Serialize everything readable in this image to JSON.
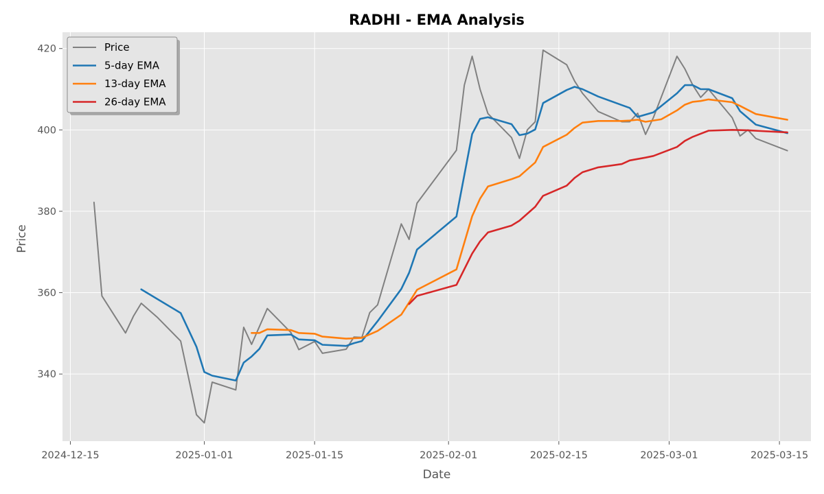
{
  "chart_data": {
    "type": "line",
    "title": "RADHI - EMA Analysis",
    "xlabel": "Date",
    "ylabel": "Price",
    "xlim": [
      "2024-12-14",
      "2025-03-19"
    ],
    "ylim": [
      323.5,
      424
    ],
    "x_ticks": [
      "2024-12-15",
      "2025-01-01",
      "2025-01-15",
      "2025-02-01",
      "2025-02-15",
      "2025-03-01",
      "2025-03-15"
    ],
    "y_ticks": [
      340,
      360,
      380,
      400,
      420
    ],
    "grid": true,
    "legend_position": "top-left",
    "colors": {
      "plot_bg": "#e5e5e5",
      "grid": "#ffffff"
    },
    "series": [
      {
        "name": "Price",
        "color": "#808080",
        "points": [
          [
            "2024-12-18",
            382.2
          ],
          [
            "2024-12-19",
            359.2
          ],
          [
            "2024-12-22",
            350.1
          ],
          [
            "2024-12-23",
            354.2
          ],
          [
            "2024-12-24",
            357.4
          ],
          [
            "2024-12-26",
            354.0
          ],
          [
            "2024-12-29",
            348.1
          ],
          [
            "2024-12-30",
            339.1
          ],
          [
            "2024-12-31",
            330.0
          ],
          [
            "2025-01-01",
            328.0
          ],
          [
            "2025-01-02",
            338.0
          ],
          [
            "2025-01-05",
            336.1
          ],
          [
            "2025-01-06",
            351.5
          ],
          [
            "2025-01-07",
            347.3
          ],
          [
            "2025-01-09",
            356.1
          ],
          [
            "2025-01-12",
            350.2
          ],
          [
            "2025-01-13",
            346.0
          ],
          [
            "2025-01-15",
            348.0
          ],
          [
            "2025-01-16",
            345.1
          ],
          [
            "2025-01-19",
            346.1
          ],
          [
            "2025-01-20",
            349.1
          ],
          [
            "2025-01-21",
            349.0
          ],
          [
            "2025-01-22",
            355.1
          ],
          [
            "2025-01-23",
            357.0
          ],
          [
            "2025-01-26",
            376.9
          ],
          [
            "2025-01-27",
            373.1
          ],
          [
            "2025-01-28",
            382.0
          ],
          [
            "2025-02-02",
            395.0
          ],
          [
            "2025-02-03",
            411.0
          ],
          [
            "2025-02-04",
            418.1
          ],
          [
            "2025-02-05",
            410.0
          ],
          [
            "2025-02-06",
            404.0
          ],
          [
            "2025-02-09",
            398.1
          ],
          [
            "2025-02-10",
            393.0
          ],
          [
            "2025-02-11",
            400.0
          ],
          [
            "2025-02-12",
            402.0
          ],
          [
            "2025-02-13",
            419.6
          ],
          [
            "2025-02-16",
            416.0
          ],
          [
            "2025-02-17",
            412.0
          ],
          [
            "2025-02-18",
            409.0
          ],
          [
            "2025-02-20",
            404.5
          ],
          [
            "2025-02-23",
            402.0
          ],
          [
            "2025-02-24",
            402.0
          ],
          [
            "2025-02-25",
            404.1
          ],
          [
            "2025-02-26",
            398.9
          ],
          [
            "2025-02-27",
            403.0
          ],
          [
            "2025-03-02",
            418.1
          ],
          [
            "2025-03-03",
            415.0
          ],
          [
            "2025-03-04",
            411.0
          ],
          [
            "2025-03-05",
            408.0
          ],
          [
            "2025-03-06",
            410.0
          ],
          [
            "2025-03-09",
            403.0
          ],
          [
            "2025-03-10",
            398.5
          ],
          [
            "2025-03-11",
            400.0
          ],
          [
            "2025-03-12",
            397.9
          ],
          [
            "2025-03-16",
            394.9
          ]
        ]
      },
      {
        "name": "5-day EMA",
        "color": "#1f77b4",
        "points": [
          [
            "2024-12-24",
            360.8
          ],
          [
            "2024-12-29",
            355.0
          ],
          [
            "2024-12-31",
            346.7
          ],
          [
            "2025-01-01",
            340.5
          ],
          [
            "2025-01-02",
            339.6
          ],
          [
            "2025-01-05",
            338.4
          ],
          [
            "2025-01-06",
            342.8
          ],
          [
            "2025-01-07",
            344.3
          ],
          [
            "2025-01-08",
            346.2
          ],
          [
            "2025-01-09",
            349.5
          ],
          [
            "2025-01-12",
            349.7
          ],
          [
            "2025-01-13",
            348.5
          ],
          [
            "2025-01-15",
            348.3
          ],
          [
            "2025-01-16",
            347.2
          ],
          [
            "2025-01-19",
            346.9
          ],
          [
            "2025-01-20",
            347.6
          ],
          [
            "2025-01-21",
            348.1
          ],
          [
            "2025-01-23",
            353.0
          ],
          [
            "2025-01-26",
            360.9
          ],
          [
            "2025-01-27",
            364.9
          ],
          [
            "2025-01-28",
            370.6
          ],
          [
            "2025-02-02",
            378.7
          ],
          [
            "2025-02-04",
            399.0
          ],
          [
            "2025-02-05",
            402.7
          ],
          [
            "2025-02-06",
            403.1
          ],
          [
            "2025-02-09",
            401.4
          ],
          [
            "2025-02-10",
            398.7
          ],
          [
            "2025-02-11",
            399.1
          ],
          [
            "2025-02-12",
            400.1
          ],
          [
            "2025-02-13",
            406.6
          ],
          [
            "2025-02-16",
            409.8
          ],
          [
            "2025-02-17",
            410.6
          ],
          [
            "2025-02-18",
            410.0
          ],
          [
            "2025-02-20",
            408.2
          ],
          [
            "2025-02-23",
            406.1
          ],
          [
            "2025-02-24",
            405.4
          ],
          [
            "2025-02-25",
            403.2
          ],
          [
            "2025-02-27",
            404.3
          ],
          [
            "2025-03-02",
            409.0
          ],
          [
            "2025-03-03",
            411.0
          ],
          [
            "2025-03-04",
            411.0
          ],
          [
            "2025-03-05",
            410.0
          ],
          [
            "2025-03-06",
            410.0
          ],
          [
            "2025-03-09",
            407.8
          ],
          [
            "2025-03-10",
            404.6
          ],
          [
            "2025-03-12",
            401.3
          ],
          [
            "2025-03-16",
            399.2
          ]
        ]
      },
      {
        "name": "13-day EMA",
        "color": "#ff7f0e",
        "points": [
          [
            "2025-01-07",
            350.1
          ],
          [
            "2025-01-08",
            350.1
          ],
          [
            "2025-01-09",
            351.0
          ],
          [
            "2025-01-12",
            350.8
          ],
          [
            "2025-01-13",
            350.1
          ],
          [
            "2025-01-15",
            349.9
          ],
          [
            "2025-01-16",
            349.2
          ],
          [
            "2025-01-19",
            348.7
          ],
          [
            "2025-01-20",
            348.8
          ],
          [
            "2025-01-21",
            348.9
          ],
          [
            "2025-01-23",
            350.6
          ],
          [
            "2025-01-26",
            354.6
          ],
          [
            "2025-01-27",
            357.6
          ],
          [
            "2025-01-28",
            360.7
          ],
          [
            "2025-02-02",
            365.7
          ],
          [
            "2025-02-04",
            378.8
          ],
          [
            "2025-02-05",
            383.1
          ],
          [
            "2025-02-06",
            386.1
          ],
          [
            "2025-02-09",
            387.9
          ],
          [
            "2025-02-10",
            388.6
          ],
          [
            "2025-02-12",
            392.0
          ],
          [
            "2025-02-13",
            395.8
          ],
          [
            "2025-02-16",
            398.8
          ],
          [
            "2025-02-17",
            400.5
          ],
          [
            "2025-02-18",
            401.8
          ],
          [
            "2025-02-20",
            402.2
          ],
          [
            "2025-02-23",
            402.2
          ],
          [
            "2025-02-24",
            402.3
          ],
          [
            "2025-02-25",
            402.5
          ],
          [
            "2025-02-26",
            402.0
          ],
          [
            "2025-02-28",
            402.6
          ],
          [
            "2025-03-02",
            404.8
          ],
          [
            "2025-03-03",
            406.2
          ],
          [
            "2025-03-04",
            406.9
          ],
          [
            "2025-03-05",
            407.1
          ],
          [
            "2025-03-06",
            407.5
          ],
          [
            "2025-03-09",
            406.8
          ],
          [
            "2025-03-10",
            405.9
          ],
          [
            "2025-03-12",
            403.9
          ],
          [
            "2025-03-16",
            402.5
          ]
        ]
      },
      {
        "name": "26-day EMA",
        "color": "#d62728",
        "points": [
          [
            "2025-01-27",
            357.2
          ],
          [
            "2025-01-28",
            359.2
          ],
          [
            "2025-02-02",
            361.9
          ],
          [
            "2025-02-04",
            369.6
          ],
          [
            "2025-02-05",
            372.6
          ],
          [
            "2025-02-06",
            374.8
          ],
          [
            "2025-02-09",
            376.5
          ],
          [
            "2025-02-10",
            377.7
          ],
          [
            "2025-02-12",
            381.1
          ],
          [
            "2025-02-13",
            383.8
          ],
          [
            "2025-02-16",
            386.3
          ],
          [
            "2025-02-17",
            388.2
          ],
          [
            "2025-02-18",
            389.6
          ],
          [
            "2025-02-20",
            390.8
          ],
          [
            "2025-02-23",
            391.6
          ],
          [
            "2025-02-24",
            392.5
          ],
          [
            "2025-02-26",
            393.2
          ],
          [
            "2025-02-27",
            393.6
          ],
          [
            "2025-03-02",
            395.8
          ],
          [
            "2025-03-03",
            397.3
          ],
          [
            "2025-03-04",
            398.3
          ],
          [
            "2025-03-06",
            399.8
          ],
          [
            "2025-03-09",
            400.0
          ],
          [
            "2025-03-11",
            399.9
          ],
          [
            "2025-03-16",
            399.4
          ]
        ]
      }
    ]
  }
}
